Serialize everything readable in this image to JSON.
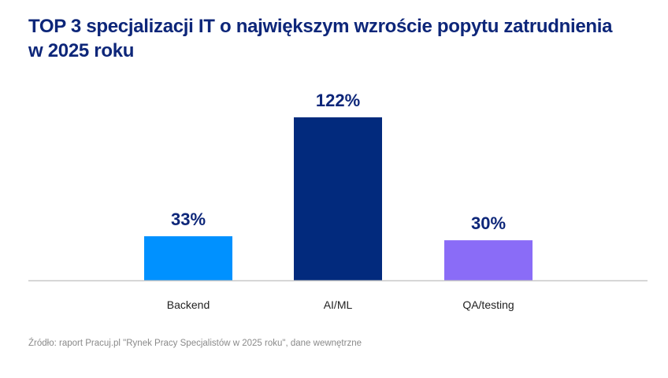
{
  "chart_data": {
    "type": "bar",
    "title": "TOP 3 specjalizacji IT o największym wzroście popytu zatrudnienia w 2025 roku",
    "categories": [
      "Backend",
      "AI/ML",
      "QA/testing"
    ],
    "values": [
      33,
      122,
      30
    ],
    "value_labels": [
      "33%",
      "122%",
      "30%"
    ],
    "colors": [
      "#0091ff",
      "#022a7d",
      "#8a6cf7"
    ],
    "xlabel": "",
    "ylabel": "",
    "ylim": [
      0,
      122
    ],
    "grid": false,
    "source": "Źródło: raport Pracuj.pl \"Rynek Pracy Specjalistów w 2025 roku\", dane wewnętrzne"
  }
}
